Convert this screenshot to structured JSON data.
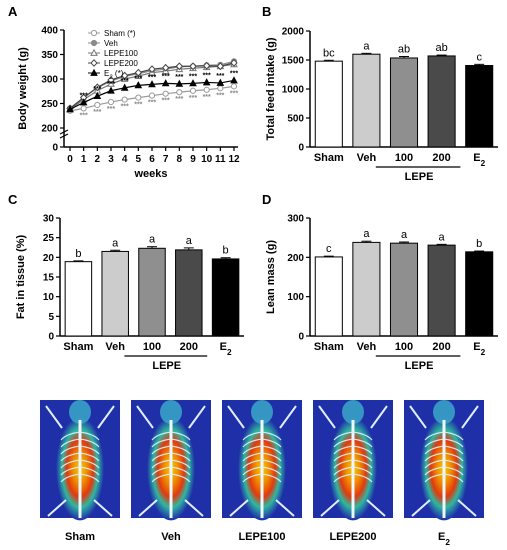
{
  "panel_labels": [
    "A",
    "B",
    "C",
    "D"
  ],
  "chart_data": [
    {
      "panel": "A",
      "type": "line",
      "ylabel": "Body weight (g)",
      "xlabel": "weeks",
      "x": [
        0,
        1,
        2,
        3,
        4,
        5,
        6,
        7,
        8,
        9,
        10,
        11,
        12
      ],
      "ylim": [
        0,
        400
      ],
      "yticks": [
        0,
        100,
        200,
        250,
        300,
        350,
        400
      ],
      "y_axis_break": [
        0,
        200
      ],
      "series": [
        {
          "name": "Sham (*)",
          "legend_main": "Sham",
          "legend_sub": "",
          "legend_suffix": " (*)",
          "marker": "circle-open",
          "color": "#9a9a9a",
          "values": [
            235,
            240,
            247,
            253,
            258,
            262,
            266,
            270,
            273,
            276,
            278,
            281,
            285
          ]
        },
        {
          "name": "Veh",
          "legend_main": "Veh",
          "legend_sub": "",
          "legend_suffix": "",
          "marker": "circle-filled",
          "color": "#8a8a8a",
          "values": [
            240,
            262,
            282,
            296,
            305,
            311,
            317,
            320,
            325,
            326,
            328,
            329,
            336
          ]
        },
        {
          "name": "LEPE100",
          "legend_main": "LEPE100",
          "legend_sub": "",
          "legend_suffix": "",
          "marker": "triangle-open",
          "color": "#777777",
          "values": [
            238,
            258,
            276,
            290,
            300,
            306,
            313,
            316,
            320,
            322,
            324,
            326,
            330
          ]
        },
        {
          "name": "LEPE200",
          "legend_main": "LEPE200",
          "legend_sub": "",
          "legend_suffix": "",
          "marker": "diamond-open",
          "color": "#444444",
          "values": [
            240,
            262,
            283,
            298,
            307,
            313,
            320,
            323,
            326,
            326,
            327,
            326,
            333
          ]
        },
        {
          "name": "E2 (*)",
          "legend_main": "E",
          "legend_sub": "2",
          "legend_suffix": " (*)",
          "marker": "triangle-filled",
          "color": "#000000",
          "values": [
            238,
            252,
            265,
            276,
            282,
            287,
            289,
            291,
            290,
            291,
            293,
            292,
            297
          ]
        }
      ],
      "significance": [
        {
          "label": "***",
          "series": "Sham (*)",
          "x": [
            1,
            2,
            3,
            4,
            5,
            6,
            7,
            8,
            9,
            10,
            11,
            12
          ]
        },
        {
          "label": "***",
          "series": "E2 (*)",
          "x": [
            1,
            2,
            3,
            4,
            5,
            6,
            7,
            8,
            9,
            10,
            11,
            12
          ]
        }
      ]
    },
    {
      "panel": "B",
      "type": "bar",
      "ylabel": "Total feed intake (g)",
      "ylim": [
        0,
        2000
      ],
      "yticks": [
        0,
        500,
        1000,
        1500,
        2000
      ],
      "categories": [
        "Sham",
        "Veh",
        "100",
        "200",
        "E2"
      ],
      "cat_main": [
        "Sham",
        "Veh",
        "100",
        "200",
        "E"
      ],
      "cat_sub": [
        "",
        "",
        "",
        "",
        "2"
      ],
      "values": [
        1480,
        1600,
        1535,
        1570,
        1405
      ],
      "errors": [
        15,
        15,
        25,
        15,
        20
      ],
      "letters": [
        "bc",
        "a",
        "ab",
        "ab",
        "c"
      ],
      "colors": [
        "#ffffff",
        "#cccccc",
        "#8f8f8f",
        "#4a4a4a",
        "#000000"
      ],
      "group_label": "LEPE"
    },
    {
      "panel": "C",
      "type": "bar",
      "ylabel": "Fat in tissue (%)",
      "ylim": [
        0,
        30
      ],
      "yticks": [
        0,
        5,
        10,
        15,
        20,
        25,
        30
      ],
      "categories": [
        "Sham",
        "Veh",
        "100",
        "200",
        "E2"
      ],
      "cat_main": [
        "Sham",
        "Veh",
        "100",
        "200",
        "E"
      ],
      "cat_sub": [
        "",
        "",
        "",
        "",
        "2"
      ],
      "values": [
        18.9,
        21.5,
        22.3,
        21.9,
        19.6
      ],
      "errors": [
        0.2,
        0.3,
        0.4,
        0.5,
        0.3
      ],
      "letters": [
        "b",
        "a",
        "a",
        "a",
        "b"
      ],
      "colors": [
        "#ffffff",
        "#cccccc",
        "#8f8f8f",
        "#4a4a4a",
        "#000000"
      ],
      "group_label": "LEPE"
    },
    {
      "panel": "D",
      "type": "bar",
      "ylabel": "Lean mass (g)",
      "ylim": [
        0,
        300
      ],
      "yticks": [
        0,
        100,
        200,
        300
      ],
      "categories": [
        "Sham",
        "Veh",
        "100",
        "200",
        "E2"
      ],
      "cat_main": [
        "Sham",
        "Veh",
        "100",
        "200",
        "E"
      ],
      "cat_sub": [
        "",
        "",
        "",
        "",
        "2"
      ],
      "values": [
        201,
        238,
        236,
        231,
        214
      ],
      "errors": [
        2,
        3,
        3,
        2,
        2
      ],
      "letters": [
        "c",
        "a",
        "a",
        "a",
        "b"
      ],
      "colors": [
        "#ffffff",
        "#cccccc",
        "#8f8f8f",
        "#4a4a4a",
        "#000000"
      ],
      "group_label": "LEPE"
    }
  ],
  "scans": {
    "labels_main": [
      "Sham",
      "Veh",
      "LEPE100",
      "LEPE200",
      "E"
    ],
    "labels_sub": [
      "",
      "",
      "",
      "",
      "2"
    ],
    "background_color": "#1f2fa8"
  }
}
